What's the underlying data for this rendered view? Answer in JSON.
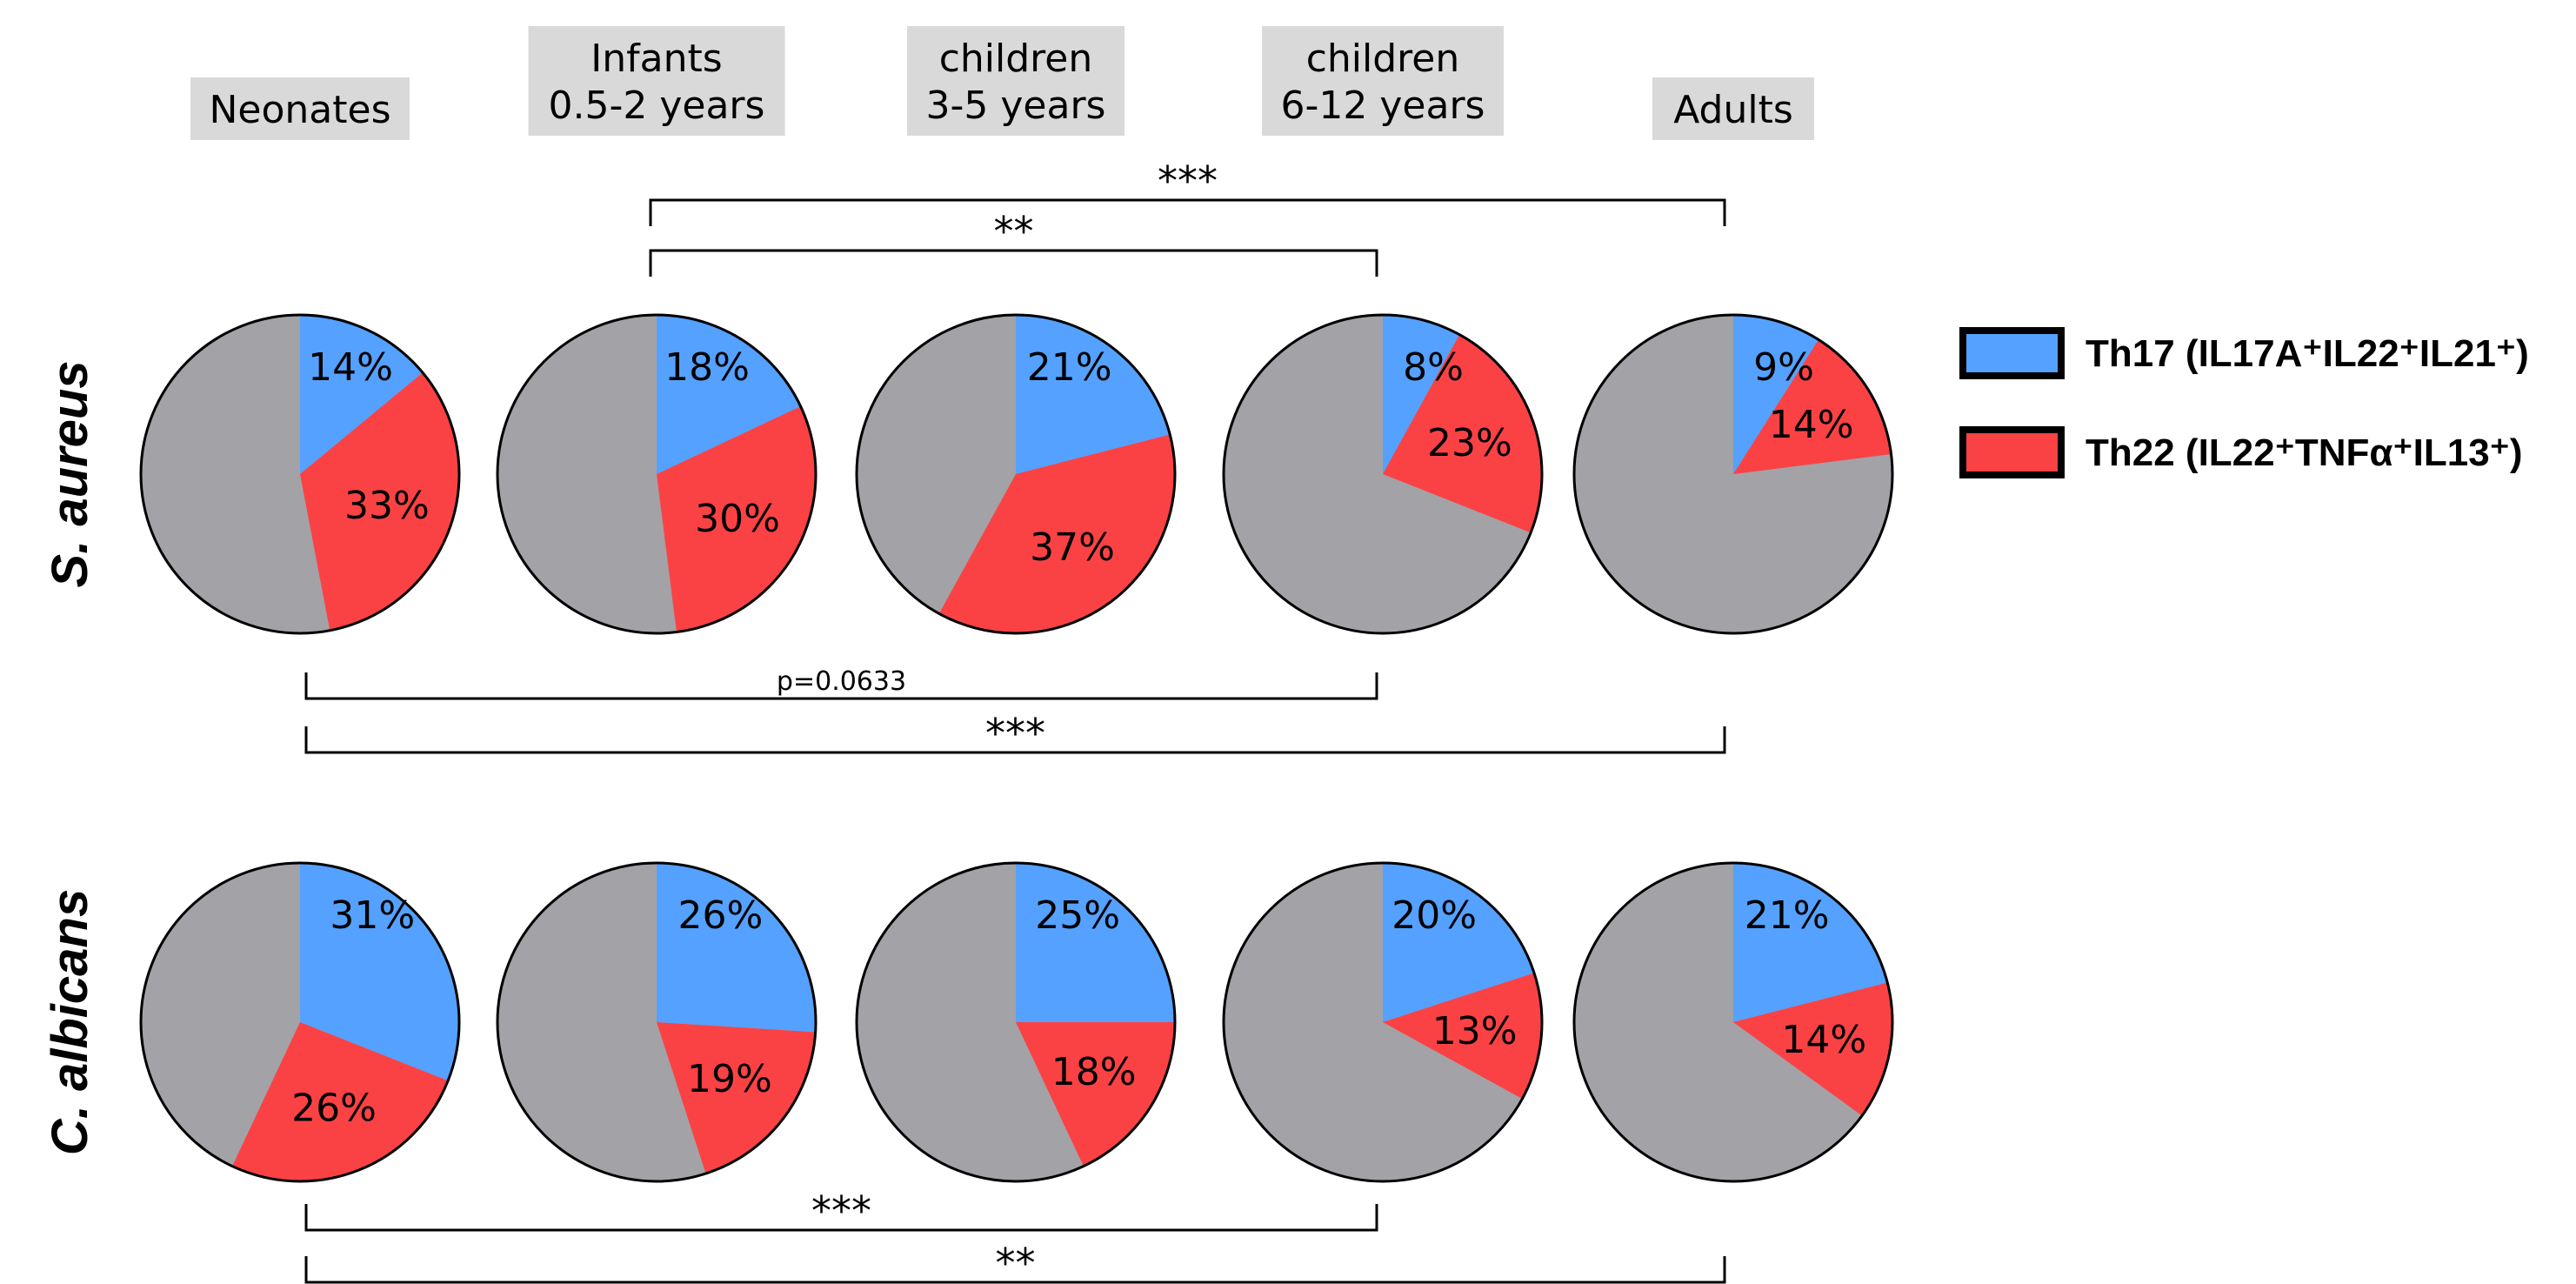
{
  "column_headers": [
    [
      "Neonates"
    ],
    [
      "Infants",
      "0.5-2 years"
    ],
    [
      "children",
      "3-5 years"
    ],
    [
      "children",
      "6-12 years"
    ],
    [
      "Adults"
    ]
  ],
  "legend": [
    {
      "label": "Th17 (IL17A⁺IL22⁺IL21⁺)",
      "color": "#55a1ff"
    },
    {
      "label": "Th22 (IL22⁺TNFα⁺IL13⁺)",
      "color": "#fa4245"
    }
  ],
  "colors": {
    "other": "#a3a2a7",
    "header_bg": "#d9d9d9",
    "outline": "#000000"
  },
  "chart_data": {
    "type": "pie",
    "groups": [
      "Neonates",
      "Infants 0.5-2 years",
      "children 3-5 years",
      "children 6-12 years",
      "Adults"
    ],
    "rows": [
      {
        "label": "S. aureus",
        "th17": [
          14,
          18,
          21,
          8,
          9
        ],
        "th22": [
          33,
          30,
          37,
          23,
          14
        ],
        "labels_th17": [
          "14%",
          "18%",
          "21%",
          "8%",
          "9%"
        ],
        "labels_th22": [
          "33%",
          "30%",
          "37%",
          "23%",
          "14%"
        ]
      },
      {
        "label": "C. albicans",
        "th17": [
          31,
          26,
          25,
          20,
          21
        ],
        "th22": [
          26,
          19,
          18,
          13,
          14
        ],
        "labels_th17": [
          "31%",
          "26%",
          "25%",
          "20%",
          "21%"
        ],
        "labels_th22": [
          "26%",
          "19%",
          "18%",
          "13%",
          "14%"
        ]
      }
    ],
    "significance": [
      {
        "row": "S. aureus",
        "position": "above",
        "from": 1,
        "to": 4,
        "label": "***"
      },
      {
        "row": "S. aureus",
        "position": "above",
        "from": 1,
        "to": 3,
        "label": "**"
      },
      {
        "row": "S. aureus",
        "position": "below",
        "from": 0,
        "to": 3,
        "label": "p=0.0633"
      },
      {
        "row": "S. aureus",
        "position": "below",
        "from": 0,
        "to": 4,
        "label": "***"
      },
      {
        "row": "C. albicans",
        "position": "below",
        "from": 0,
        "to": 3,
        "label": "***"
      },
      {
        "row": "C. albicans",
        "position": "below",
        "from": 0,
        "to": 4,
        "label": "**"
      }
    ]
  }
}
